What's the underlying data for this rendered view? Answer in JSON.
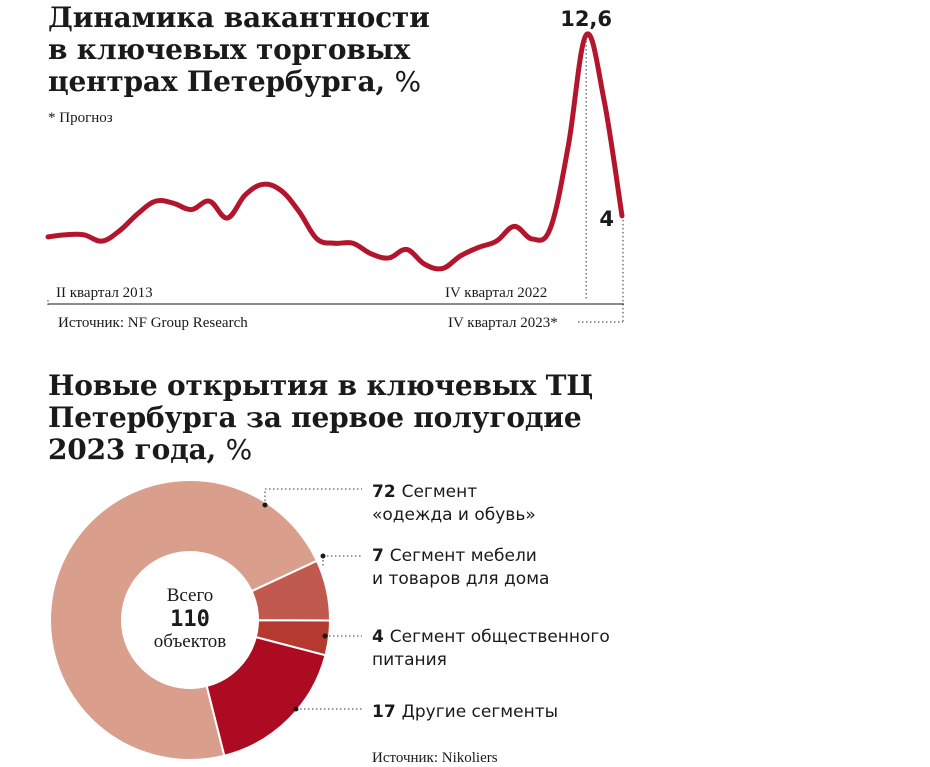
{
  "chart_data": [
    {
      "type": "line",
      "title_lines": [
        "Динамика вакантности",
        "в ключевых торговых",
        "центрах Петербурга,"
      ],
      "title_unit": "%",
      "note": "* Прогноз",
      "x_start_label": "II квартал 2013",
      "x_mid_label": "IV квартал 2022",
      "x_end_label": "IV квартал 2023*",
      "source": "Источник: NF Group Research",
      "series": [
        {
          "values": [
            3.0,
            3.1,
            3.1,
            2.8,
            3.3,
            4.1,
            4.7,
            4.6,
            4.3,
            4.7,
            3.9,
            5.0,
            5.5,
            5.2,
            4.2,
            2.9,
            2.7,
            2.7,
            2.2,
            2.0,
            2.4,
            1.7,
            1.5,
            2.1,
            2.5,
            2.8,
            3.5,
            2.9,
            3.4,
            7.3,
            12.6,
            9.5,
            4.0
          ]
        }
      ],
      "peak_value_label": "12,6",
      "last_value_label": "4",
      "color": "#b3152c"
    },
    {
      "type": "pie",
      "title_lines": [
        "Новые открытия в ключевых ТЦ",
        "Петербурга за первое полугодие",
        "2023 года,"
      ],
      "title_unit": "%",
      "center_lines": [
        "Всего",
        "110",
        "объектов"
      ],
      "slices": [
        {
          "value": 72,
          "value_label": "72",
          "label_lines": [
            "Сегмент",
            "«одежда и обувь»"
          ],
          "color": "#d99f8c"
        },
        {
          "value": 7,
          "value_label": "7",
          "label_lines": [
            "Сегмент мебели",
            "и товаров для дома"
          ],
          "color": "#c15a4e"
        },
        {
          "value": 4,
          "value_label": "4",
          "label_lines": [
            "Сегмент общественного",
            "питания"
          ],
          "color": "#b5392e"
        },
        {
          "value": 17,
          "value_label": "17",
          "label_lines": [
            "Другие сегменты"
          ],
          "color": "#ad0b21"
        }
      ],
      "source": "Источник: Nikoliers"
    }
  ]
}
